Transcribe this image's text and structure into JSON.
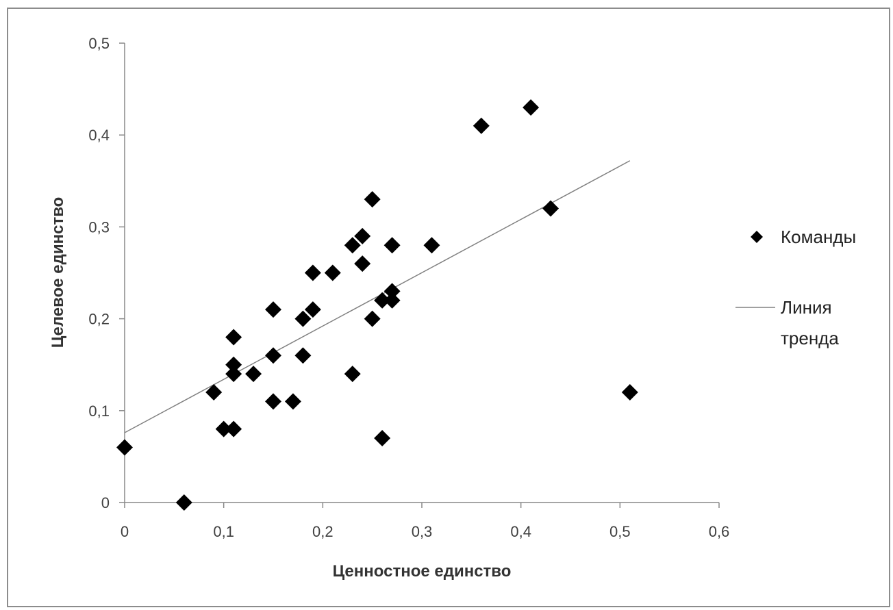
{
  "chart_data": {
    "type": "scatter",
    "title": "",
    "xlabel": "Ценностное единство",
    "ylabel": "Целевое единство",
    "xlim": [
      0,
      0.6
    ],
    "ylim": [
      0,
      0.5
    ],
    "x_ticks": [
      "0",
      "0,1",
      "0,2",
      "0,3",
      "0,4",
      "0,5",
      "0,6"
    ],
    "y_ticks": [
      "0",
      "0,1",
      "0,2",
      "0,3",
      "0,4",
      "0,5"
    ],
    "grid": false,
    "legend_position": "right",
    "series": [
      {
        "name": "Команды",
        "marker": "diamond",
        "color": "#000000",
        "points": [
          [
            0,
            0.06
          ],
          [
            0.06,
            0
          ],
          [
            0.09,
            0.12
          ],
          [
            0.1,
            0.08
          ],
          [
            0.11,
            0.08
          ],
          [
            0.11,
            0.14
          ],
          [
            0.11,
            0.15
          ],
          [
            0.11,
            0.18
          ],
          [
            0.13,
            0.14
          ],
          [
            0.15,
            0.11
          ],
          [
            0.15,
            0.16
          ],
          [
            0.15,
            0.21
          ],
          [
            0.17,
            0.11
          ],
          [
            0.18,
            0.16
          ],
          [
            0.18,
            0.2
          ],
          [
            0.19,
            0.21
          ],
          [
            0.19,
            0.25
          ],
          [
            0.21,
            0.25
          ],
          [
            0.23,
            0.14
          ],
          [
            0.23,
            0.28
          ],
          [
            0.24,
            0.26
          ],
          [
            0.24,
            0.29
          ],
          [
            0.25,
            0.2
          ],
          [
            0.25,
            0.33
          ],
          [
            0.26,
            0.07
          ],
          [
            0.26,
            0.22
          ],
          [
            0.27,
            0.22
          ],
          [
            0.27,
            0.23
          ],
          [
            0.27,
            0.28
          ],
          [
            0.31,
            0.28
          ],
          [
            0.36,
            0.41
          ],
          [
            0.41,
            0.43
          ],
          [
            0.43,
            0.32
          ],
          [
            0.51,
            0.12
          ]
        ]
      },
      {
        "name": "Линия тренда",
        "type": "line",
        "color": "#808080",
        "points": [
          [
            0,
            0.076
          ],
          [
            0.51,
            0.372
          ]
        ]
      }
    ]
  }
}
